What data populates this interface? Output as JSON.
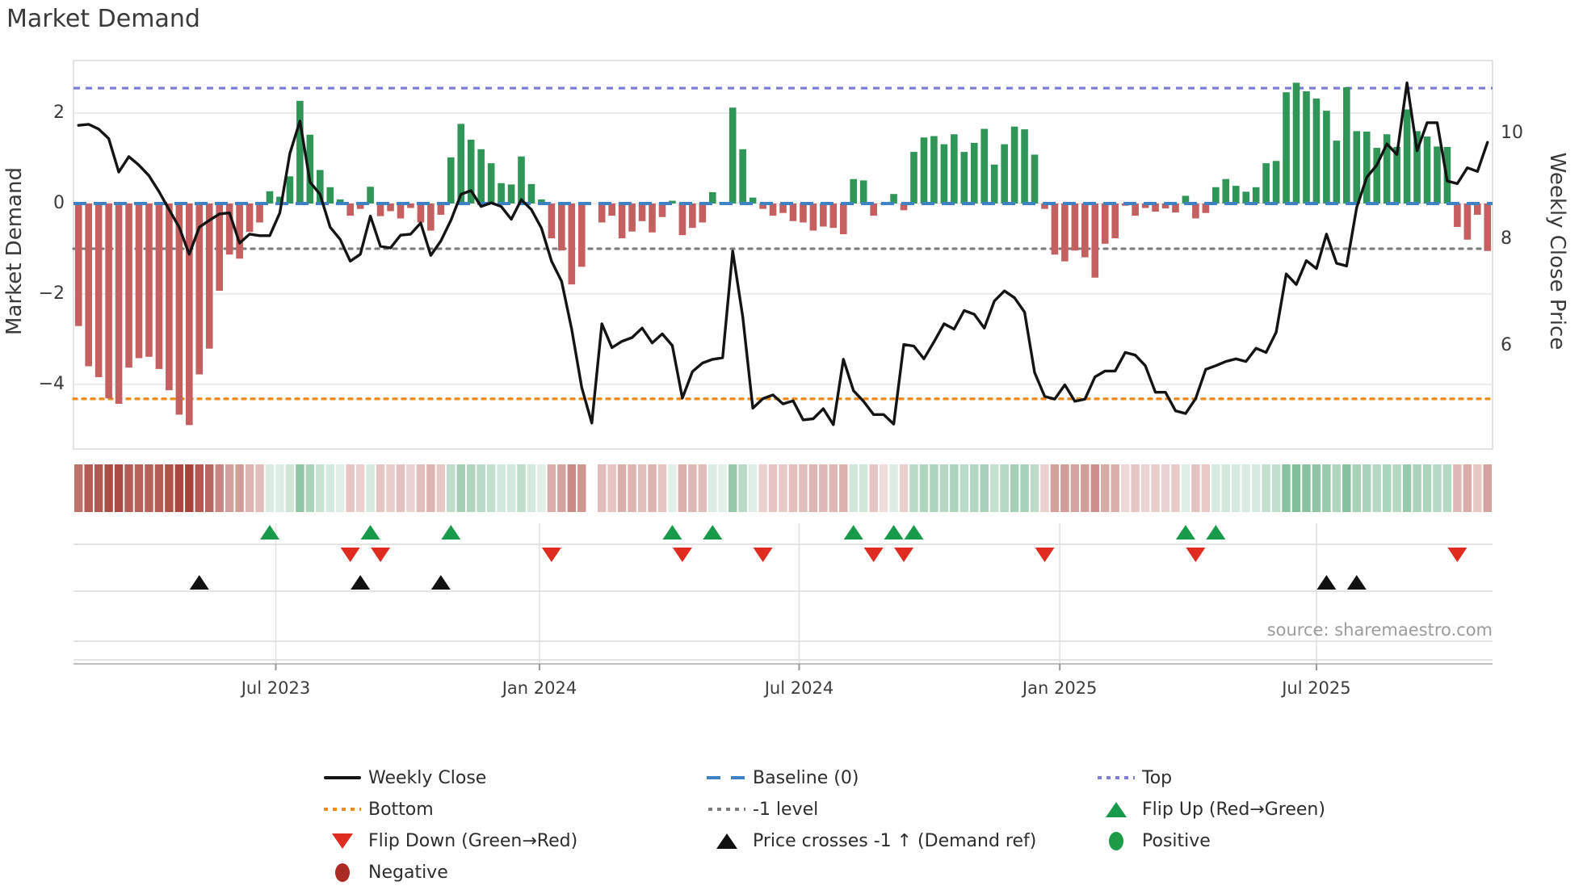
{
  "title": "Market Demand",
  "axes": {
    "left_label": "Market Demand",
    "right_label": "Weekly Close Price",
    "left_ticks": [
      {
        "label": "2",
        "value": 2
      },
      {
        "label": "0",
        "value": 0
      },
      {
        "label": "−2",
        "value": -2
      },
      {
        "label": "−4",
        "value": -4
      }
    ],
    "right_ticks": [
      {
        "label": "10",
        "value": 10
      },
      {
        "label": "8",
        "value": 8
      },
      {
        "label": "6",
        "value": 6
      }
    ],
    "x_ticks": [
      {
        "label": "Jul 2023",
        "week": 19.6
      },
      {
        "label": "Jan 2024",
        "week": 45.8
      },
      {
        "label": "Jul 2024",
        "week": 71.6
      },
      {
        "label": "Jan 2025",
        "week": 97.5
      },
      {
        "label": "Jul 2025",
        "week": 123.0
      }
    ]
  },
  "source_text": "source: sharemaestro.com",
  "colors": {
    "bar_positive": "#2f9658",
    "bar_negative": "#c65f5f",
    "price_line": "#141414",
    "baseline": "#3e82c4",
    "top_line": "#7e7ed9",
    "minus1_line": "#7d7d7d",
    "bottom_line": "#ef8b1d",
    "flip_up_marker": "#179a49",
    "flip_down_marker": "#df2b20",
    "price_cross_marker": "#111111",
    "positive_dot": "#1e9b47",
    "negative_dot": "#ab2a24",
    "heat_red_base": "#a8423a",
    "heat_green_base": "#1d8a4a",
    "grid": "#ececec",
    "spine": "#d9d9d9"
  },
  "legend": {
    "items": [
      {
        "label": "Weekly Close",
        "icon": "line-black"
      },
      {
        "label": "Baseline (0)",
        "icon": "dash-blue"
      },
      {
        "label": "Top",
        "icon": "dot-purple"
      },
      {
        "label": "Bottom",
        "icon": "dot-orange"
      },
      {
        "label": "-1 level",
        "icon": "dot-gray"
      },
      {
        "label": "Flip Up (Red→Green)",
        "icon": "triangle-up-green"
      },
      {
        "label": "Flip Down (Green→Red)",
        "icon": "triangle-down-red"
      },
      {
        "label": "Price crosses -1 ↑ (Demand ref)",
        "icon": "triangle-up-black"
      },
      {
        "label": "Positive",
        "icon": "circle-green"
      },
      {
        "label": "Negative",
        "icon": "circle-darkred"
      }
    ]
  },
  "chart_data": {
    "type": "combo",
    "n_weeks": 141,
    "x_range_note": "weekly data, ~Feb 2023 to ~Nov 2025",
    "xlabel": "",
    "ylabel_left": "Market Demand",
    "ylabel_right": "Weekly Close Price",
    "ylim_left": [
      -5.43,
      3.16
    ],
    "ylim_right": [
      4.05,
      11.37
    ],
    "grid_y_left": [
      2,
      0,
      -2,
      -4
    ],
    "levels": {
      "top": 2.55,
      "baseline": 0,
      "minus1": -1,
      "bottom": -4.32
    },
    "series": [
      {
        "name": "Market Demand",
        "type": "bar",
        "axis": "left",
        "values": [
          -2.71,
          -3.6,
          -3.84,
          -4.31,
          -4.43,
          -3.63,
          -3.42,
          -3.39,
          -3.66,
          -4.13,
          -4.67,
          -4.9,
          -3.78,
          -3.21,
          -1.93,
          -1.13,
          -1.22,
          -0.63,
          -0.42,
          0.27,
          0.15,
          0.6,
          2.27,
          1.52,
          0.74,
          0.36,
          0.09,
          -0.27,
          -0.12,
          0.37,
          -0.28,
          -0.17,
          -0.33,
          -0.1,
          -0.42,
          -0.6,
          -0.25,
          1.02,
          1.76,
          1.41,
          1.2,
          0.89,
          0.45,
          0.42,
          1.04,
          0.43,
          0.09,
          -0.77,
          -1.04,
          -1.79,
          -1.4,
          null,
          -0.42,
          -0.27,
          -0.77,
          -0.62,
          -0.39,
          -0.64,
          -0.3,
          0.06,
          -0.7,
          -0.54,
          -0.42,
          0.25,
          0.03,
          2.12,
          1.2,
          0.13,
          -0.12,
          -0.27,
          -0.21,
          -0.39,
          -0.42,
          -0.6,
          -0.51,
          -0.54,
          -0.68,
          0.54,
          0.51,
          -0.27,
          -0.02,
          0.21,
          -0.15,
          1.14,
          1.46,
          1.49,
          1.31,
          1.53,
          1.14,
          1.34,
          1.65,
          0.86,
          1.31,
          1.7,
          1.64,
          1.08,
          -0.12,
          -1.13,
          -1.28,
          -1.04,
          -1.19,
          -1.64,
          -0.89,
          -0.77,
          -0.05,
          -0.27,
          -0.1,
          -0.18,
          -0.11,
          -0.2,
          0.17,
          -0.33,
          -0.21,
          0.36,
          0.54,
          0.39,
          0.26,
          0.36,
          0.89,
          0.94,
          2.46,
          2.67,
          2.48,
          2.32,
          2.05,
          1.39,
          2.57,
          1.6,
          1.59,
          1.23,
          1.53,
          1.25,
          2.08,
          1.6,
          1.48,
          1.26,
          1.25,
          -0.52,
          -0.8,
          -0.25,
          -1.05
        ]
      },
      {
        "name": "Weekly Close",
        "type": "line",
        "axis": "right",
        "values": [
          10.15,
          10.17,
          10.08,
          9.9,
          9.27,
          9.56,
          9.4,
          9.2,
          8.9,
          8.56,
          8.23,
          7.72,
          8.23,
          8.36,
          8.48,
          8.5,
          7.93,
          8.1,
          8.07,
          8.07,
          8.5,
          9.62,
          10.23,
          9.08,
          8.85,
          8.23,
          8.0,
          7.59,
          7.72,
          8.44,
          7.87,
          7.84,
          8.08,
          8.1,
          8.31,
          7.7,
          7.97,
          8.36,
          8.85,
          8.92,
          8.62,
          8.69,
          8.62,
          8.38,
          8.75,
          8.56,
          8.21,
          7.59,
          7.21,
          6.31,
          5.21,
          4.54,
          6.41,
          5.96,
          6.08,
          6.15,
          6.33,
          6.05,
          6.22,
          6.0,
          5.01,
          5.51,
          5.67,
          5.74,
          5.77,
          7.78,
          6.54,
          4.82,
          5.0,
          5.07,
          4.9,
          4.96,
          4.6,
          4.62,
          4.81,
          4.51,
          5.74,
          5.15,
          4.95,
          4.7,
          4.7,
          4.52,
          6.02,
          5.99,
          5.75,
          6.07,
          6.41,
          6.31,
          6.66,
          6.59,
          6.33,
          6.84,
          7.03,
          6.9,
          6.63,
          5.49,
          5.04,
          4.99,
          5.26,
          4.95,
          4.99,
          5.41,
          5.52,
          5.52,
          5.87,
          5.82,
          5.62,
          5.12,
          5.12,
          4.77,
          4.72,
          5.0,
          5.55,
          5.62,
          5.7,
          5.75,
          5.7,
          5.95,
          5.87,
          6.25,
          7.35,
          7.15,
          7.6,
          7.45,
          8.1,
          7.55,
          7.5,
          8.6,
          9.17,
          9.4,
          9.8,
          9.6,
          10.95,
          9.67,
          10.2,
          10.2,
          9.1,
          9.05,
          9.35,
          9.28,
          9.83
        ]
      }
    ],
    "heatmap_note": "strip below chart mirrors bar values as red/green intensity; week 51 is blank",
    "markers": {
      "flip_up_weeks": [
        19,
        29,
        37,
        59,
        63,
        77,
        81,
        83,
        110,
        113
      ],
      "flip_down_weeks": [
        27,
        30,
        47,
        60,
        68,
        79,
        82,
        96,
        111,
        137
      ],
      "price_cross_weeks": [
        12,
        28,
        36,
        124,
        127
      ]
    },
    "legend_position": "bottom",
    "grid": true
  }
}
